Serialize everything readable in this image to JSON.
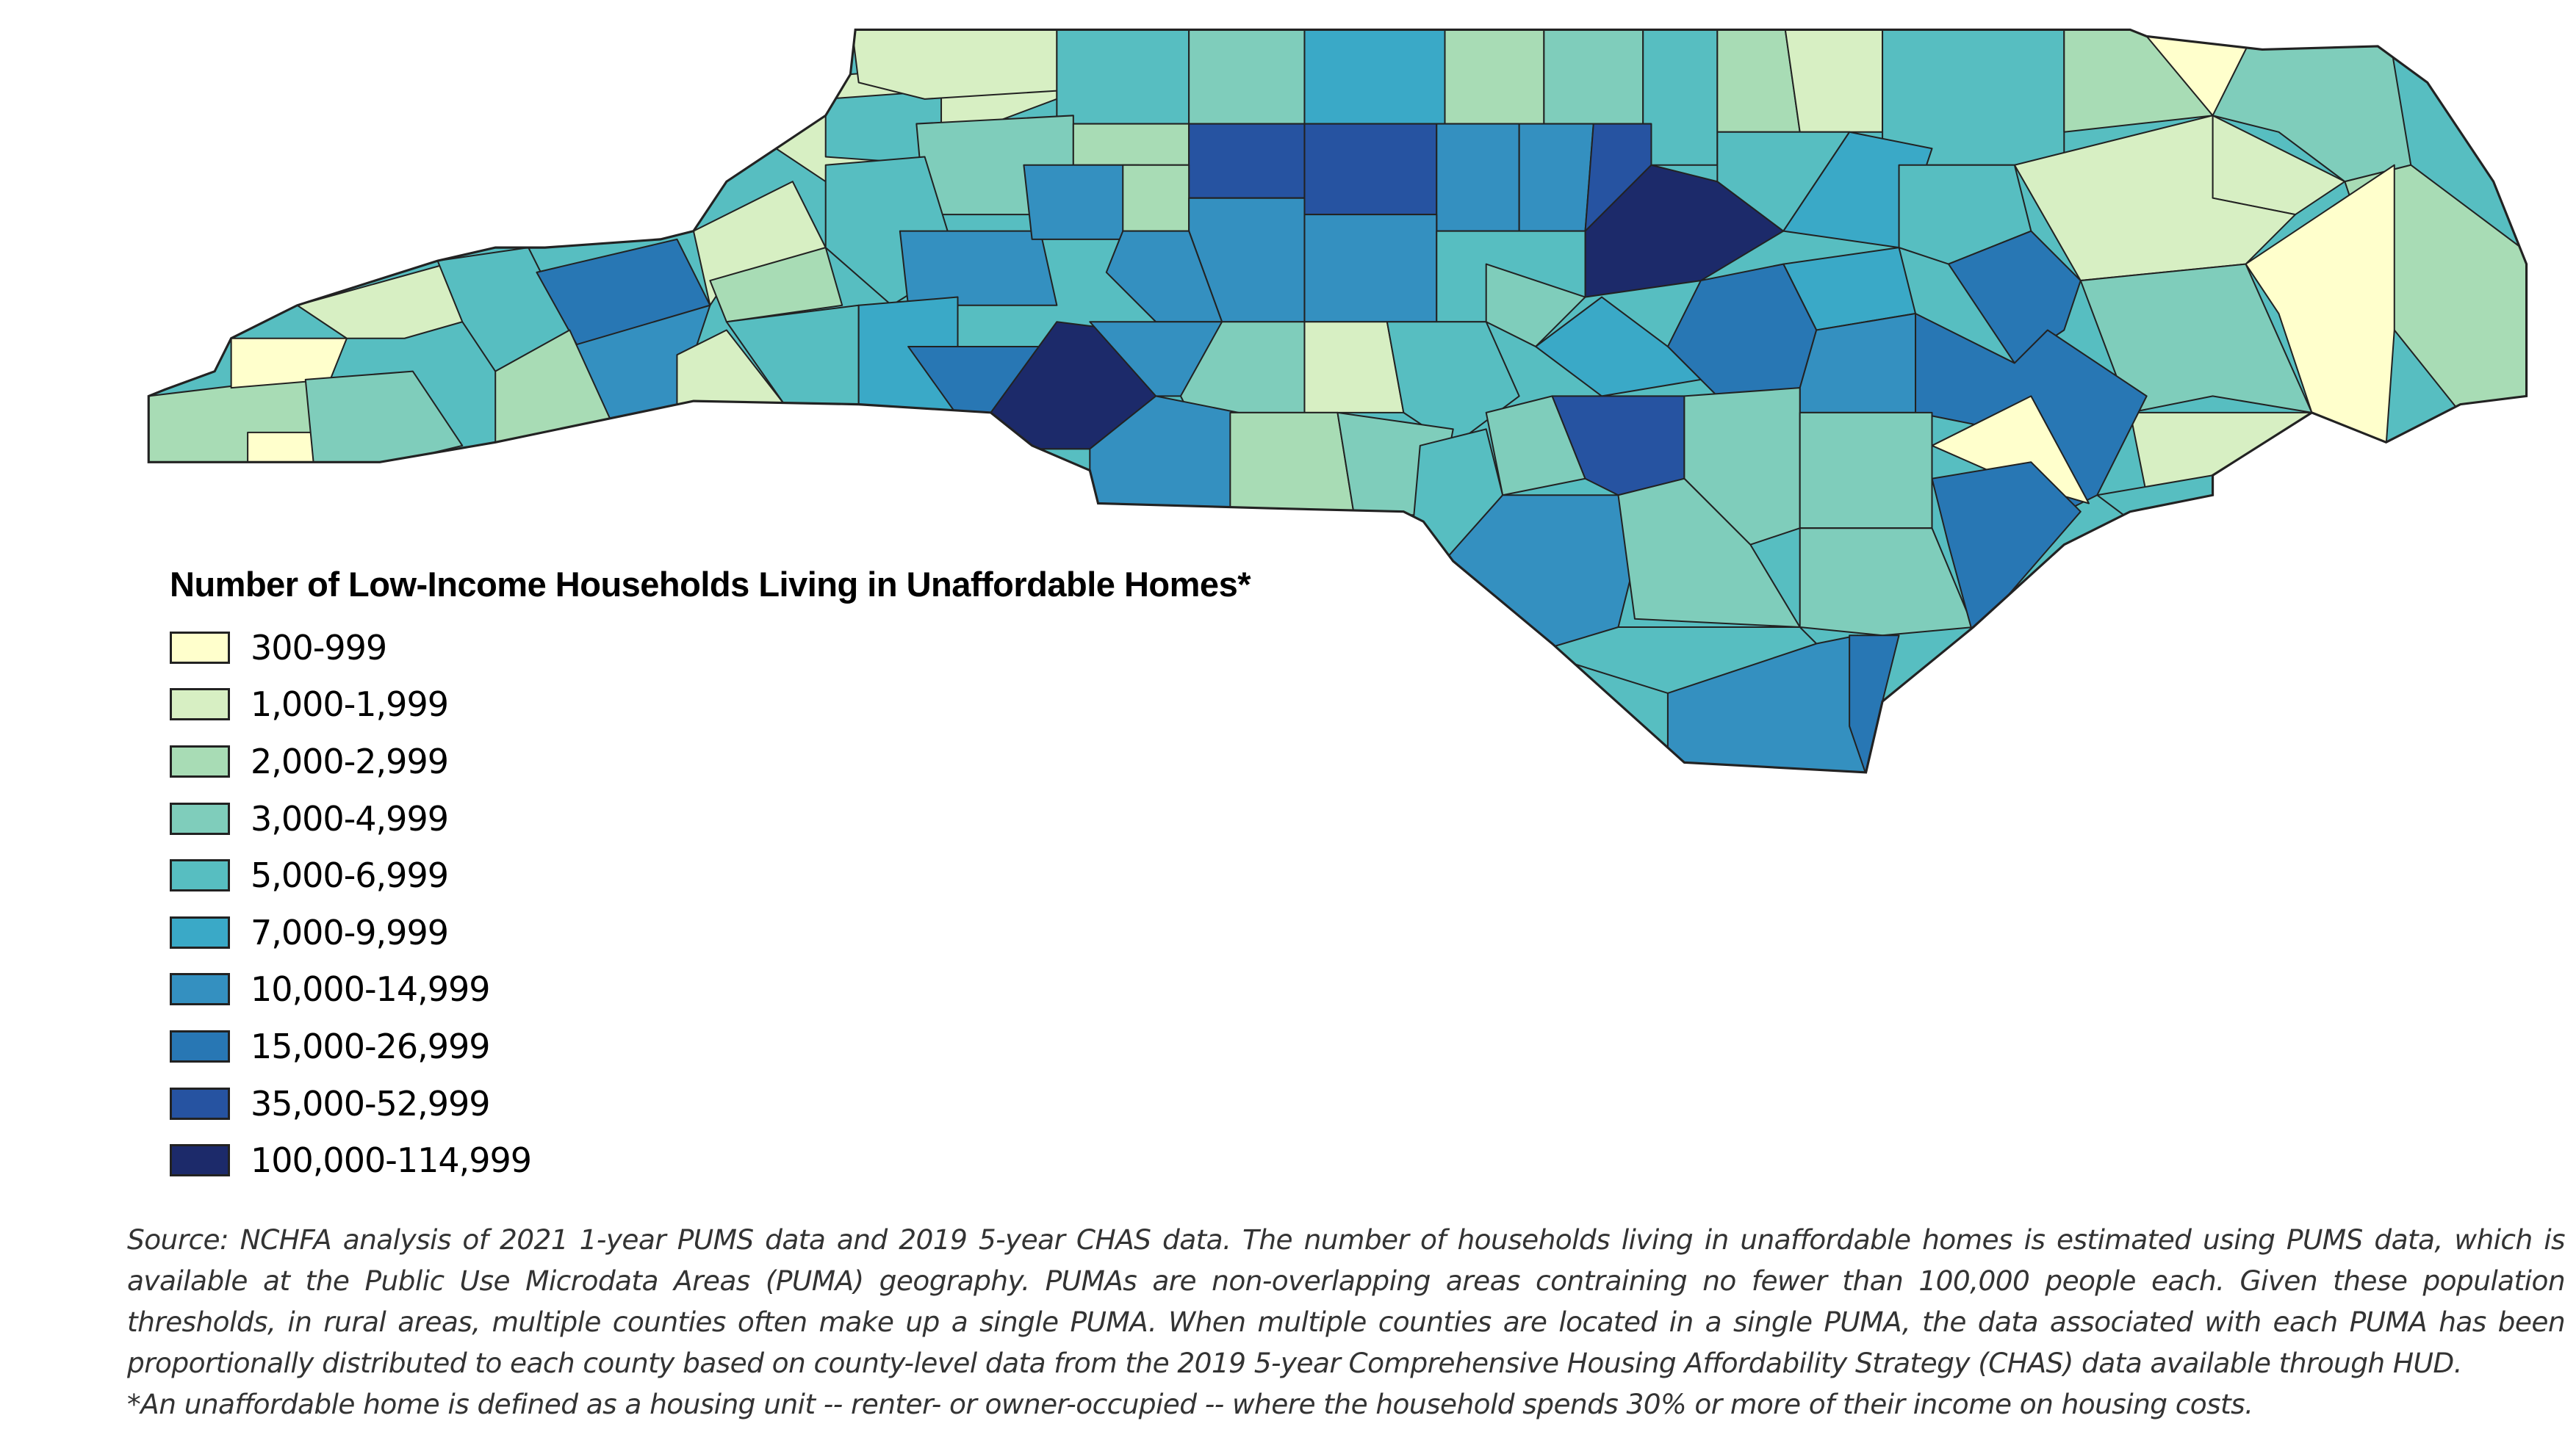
{
  "chart_data": {
    "type": "choropleth",
    "title": "Number of Low-Income Households Living in Unaffordable Homes*",
    "region": "North Carolina counties",
    "legend_placement": "bottom-left",
    "classes": [
      {
        "label": "300-999",
        "min": 300,
        "max": 999,
        "color": "#ffffcc"
      },
      {
        "label": "1,000-1,999",
        "min": 1000,
        "max": 1999,
        "color": "#d7efc3"
      },
      {
        "label": "2,000-2,999",
        "min": 2000,
        "max": 2999,
        "color": "#a8dcb5"
      },
      {
        "label": "3,000-4,999",
        "min": 3000,
        "max": 4999,
        "color": "#7fcdbb"
      },
      {
        "label": "5,000-6,999",
        "min": 5000,
        "max": 6999,
        "color": "#57bec1"
      },
      {
        "label": "7,000-9,999",
        "min": 7000,
        "max": 9999,
        "color": "#3aa9c7"
      },
      {
        "label": "10,000-14,999",
        "min": 10000,
        "max": 14999,
        "color": "#3490c0"
      },
      {
        "label": "15,000-26,999",
        "min": 15000,
        "max": 26999,
        "color": "#2877b4"
      },
      {
        "label": "35,000-52,999",
        "min": 35000,
        "max": 52999,
        "color": "#2653a1"
      },
      {
        "label": "100,000-114,999",
        "min": 100000,
        "max": 114999,
        "color": "#1c2a6a"
      }
    ]
  },
  "source_lines": [
    "Source: NCHFA analysis of 2021 1-year PUMS data and 2019 5-year CHAS data. The number of households living in unaffordable homes is estimated using PUMS data, which is",
    "available at the Public Use Microdata Areas (PUMA) geography. PUMAs are non-overlapping areas contraining no fewer than 100,000 people each. Given these population",
    "thresholds, in rural areas, multiple counties often make up a single PUMA. When multiple counties are located in a single PUMA, the data associated with each PUMA has been",
    "proportionally distributed to each county based on county-level data from the 2019 5-year Comprehensive Housing Affordability Strategy (CHAS) data available through HUD.",
    "*An unaffordable home is defined as a housing unit -- renter- or owner-occupied -- where the household spends 30% or more of their income on housing costs."
  ]
}
